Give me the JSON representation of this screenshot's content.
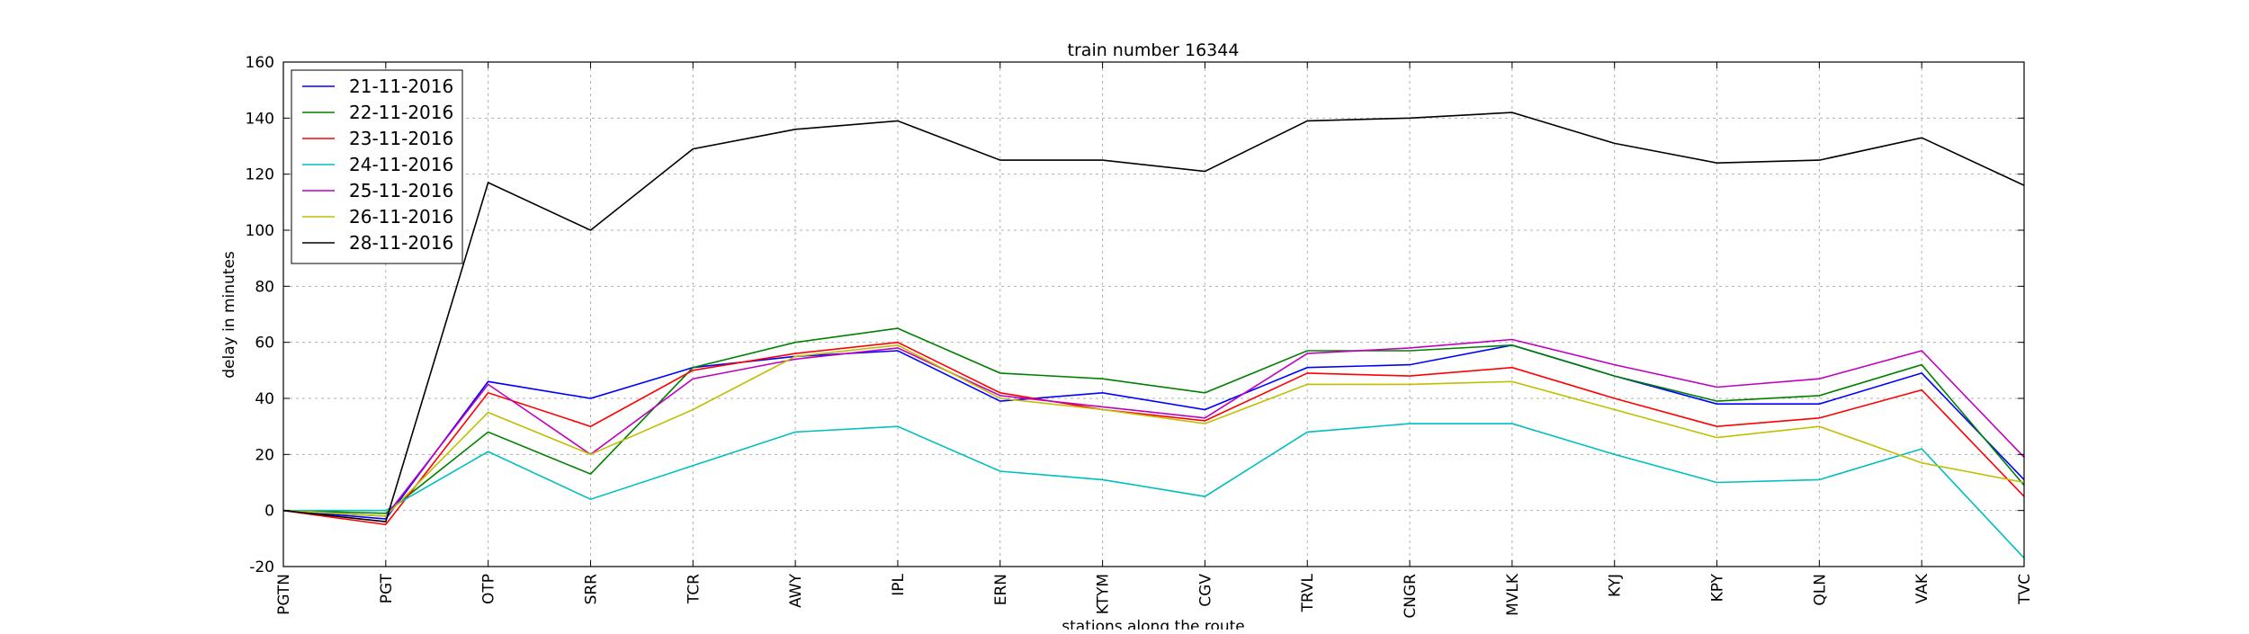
{
  "chart_data": {
    "type": "line",
    "title": "train number 16344",
    "xlabel": "stations along the route",
    "ylabel": "delay in minutes",
    "categories": [
      "PGTN",
      "PGT",
      "OTP",
      "SRR",
      "TCR",
      "AWY",
      "IPL",
      "ERN",
      "KTYM",
      "CGV",
      "TRVL",
      "CNGR",
      "MVLK",
      "KYJ",
      "KPY",
      "QLN",
      "VAK",
      "TVC"
    ],
    "ylim": [
      -20,
      160
    ],
    "yticks": [
      -20,
      0,
      20,
      40,
      60,
      80,
      100,
      120,
      140,
      160
    ],
    "grid": true,
    "legend_position": "top-left",
    "series": [
      {
        "name": "21-11-2016",
        "color": "#0000ff",
        "values": [
          0,
          -3,
          46,
          40,
          51,
          55,
          57,
          39,
          42,
          36,
          51,
          52,
          59,
          48,
          38,
          38,
          49,
          11
        ]
      },
      {
        "name": "22-11-2016",
        "color": "#008000",
        "values": [
          0,
          -1,
          28,
          13,
          51,
          60,
          65,
          49,
          47,
          42,
          57,
          57,
          59,
          48,
          39,
          41,
          52,
          9
        ]
      },
      {
        "name": "23-11-2016",
        "color": "#ff0000",
        "values": [
          0,
          -5,
          42,
          30,
          50,
          56,
          60,
          42,
          36,
          32,
          49,
          48,
          51,
          40,
          30,
          33,
          43,
          5
        ]
      },
      {
        "name": "24-11-2016",
        "color": "#00bfbf",
        "values": [
          0,
          0,
          21,
          4,
          16,
          28,
          30,
          14,
          11,
          5,
          28,
          31,
          31,
          20,
          10,
          11,
          22,
          -17
        ]
      },
      {
        "name": "25-11-2016",
        "color": "#bf00bf",
        "values": [
          0,
          -2,
          45,
          20,
          47,
          54,
          58,
          41,
          37,
          33,
          56,
          58,
          61,
          52,
          44,
          47,
          57,
          19
        ]
      },
      {
        "name": "26-11-2016",
        "color": "#bfbf00",
        "values": [
          0,
          -2,
          35,
          20,
          36,
          55,
          59,
          40,
          36,
          31,
          45,
          45,
          46,
          36,
          26,
          30,
          17,
          10
        ]
      },
      {
        "name": "28-11-2016",
        "color": "#000000",
        "values": [
          0,
          -4,
          117,
          100,
          129,
          136,
          139,
          125,
          125,
          121,
          139,
          140,
          142,
          131,
          124,
          125,
          133,
          116
        ]
      }
    ]
  }
}
